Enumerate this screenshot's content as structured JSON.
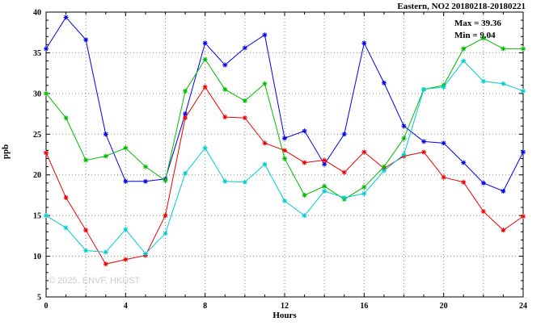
{
  "header": {
    "title": "Eastern, NO2 20180218-20180221"
  },
  "annotations": {
    "max_label": "Max = 39.36",
    "min_label": "Min = 9.04",
    "watermark": "© 2025, ENVF, HKUST"
  },
  "chart_data": {
    "type": "line",
    "title": "Eastern, NO2 20180218-20180221",
    "xlabel": "Hours",
    "ylabel": "ppb",
    "xlim": [
      0,
      24
    ],
    "ylim": [
      5,
      40
    ],
    "xticks": [
      0,
      4,
      8,
      12,
      16,
      20,
      24
    ],
    "yticks": [
      5,
      10,
      15,
      20,
      25,
      30,
      35,
      40
    ],
    "grid": true,
    "grid_x_step": 2,
    "grid_y_step": 5,
    "minor_x_step": 1,
    "minor_y_step": 1,
    "legend_position": "none",
    "stats": {
      "max": 39.36,
      "min": 9.04
    },
    "x": [
      0,
      1,
      2,
      3,
      4,
      5,
      6,
      7,
      8,
      9,
      10,
      11,
      12,
      13,
      14,
      15,
      16,
      17,
      18,
      19,
      20,
      21,
      22,
      23,
      24
    ],
    "series": [
      {
        "name": "blue",
        "color": "#0000ee",
        "values": [
          35.5,
          39.36,
          36.6,
          25.0,
          19.2,
          19.2,
          19.5,
          27.5,
          36.2,
          33.5,
          35.6,
          37.2,
          24.5,
          25.4,
          21.3,
          25.0,
          36.2,
          31.3,
          26.0,
          24.1,
          23.9,
          21.5,
          19.0,
          18.0,
          22.8
        ]
      },
      {
        "name": "red",
        "color": "#ee0000",
        "values": [
          22.7,
          17.2,
          13.2,
          9.04,
          9.6,
          10.1,
          15.0,
          27.0,
          30.8,
          27.1,
          27.0,
          23.9,
          23.0,
          21.5,
          21.8,
          20.3,
          22.8,
          20.8,
          22.3,
          22.8,
          19.7,
          19.1,
          15.5,
          13.2,
          14.9
        ]
      },
      {
        "name": "green",
        "color": "#00bb00",
        "values": [
          30.0,
          27.0,
          21.8,
          22.3,
          23.3,
          21.0,
          19.3,
          30.3,
          34.2,
          30.5,
          29.1,
          31.2,
          22.0,
          17.5,
          18.6,
          17.0,
          18.5,
          21.0,
          24.5,
          30.5,
          31.0,
          35.5,
          36.8,
          35.5,
          35.5
        ]
      },
      {
        "name": "cyan",
        "color": "#00cdcd",
        "values": [
          15.0,
          13.5,
          10.7,
          10.5,
          13.3,
          10.3,
          12.8,
          20.2,
          23.3,
          19.2,
          19.1,
          21.3,
          16.8,
          15.0,
          18.0,
          17.2,
          17.7,
          20.5,
          22.5,
          30.5,
          30.8,
          34.0,
          31.5,
          31.2,
          30.3
        ]
      }
    ]
  }
}
